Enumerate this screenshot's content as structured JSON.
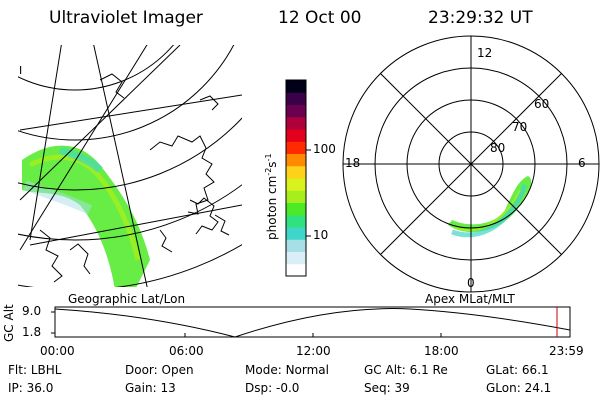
{
  "header": {
    "instrument": "Ultraviolet Imager",
    "date": "12 Oct 00",
    "time": "23:29:32 UT"
  },
  "colorbar": {
    "label": "photon cm",
    "label_sup1": "-2",
    "label_s": "s",
    "label_sup2": "-1",
    "ticks": [
      "100",
      "10"
    ],
    "colors": [
      "#ffffff",
      "#d9eef6",
      "#a7dfe7",
      "#3fd6c9",
      "#2fe27e",
      "#4cea26",
      "#a8ee1c",
      "#d8f21e",
      "#ffd21a",
      "#ff8a00",
      "#ff2a00",
      "#e2001c",
      "#b0003a",
      "#6c0050",
      "#3a0048",
      "#000018"
    ]
  },
  "left_map": {
    "label": "Geographic Lat/Lon",
    "corner_mark": "I"
  },
  "right_polar": {
    "label": "Apex MLat/MLT",
    "mlt_labels": {
      "top": "12",
      "bottom": "0",
      "left": "18",
      "right": "6"
    },
    "lat_labels": [
      "60",
      "70",
      "80"
    ]
  },
  "timeline": {
    "y_axis_label": "GC Alt",
    "y_ticks": [
      "9.0",
      "1.8"
    ],
    "x_ticks": [
      "00:00",
      "06:00",
      "12:00",
      "18:00",
      "23:59"
    ],
    "marker_color": "#cc0000"
  },
  "footer": {
    "row1": [
      {
        "key": "Flt:",
        "value": "LBHL"
      },
      {
        "key": "Door:",
        "value": "Open"
      },
      {
        "key": "Mode:",
        "value": "Normal"
      },
      {
        "key": "GC Alt:",
        "value": "6.1 Re"
      },
      {
        "key": "GLat:",
        "value": "66.1"
      }
    ],
    "row2": [
      {
        "key": "IP:",
        "value": "36.0"
      },
      {
        "key": "Gain:",
        "value": "13"
      },
      {
        "key": "Dsp:",
        "value": "-0.0"
      },
      {
        "key": "Seq:",
        "value": "39"
      },
      {
        "key": "GLon:",
        "value": "24.1"
      }
    ]
  }
}
